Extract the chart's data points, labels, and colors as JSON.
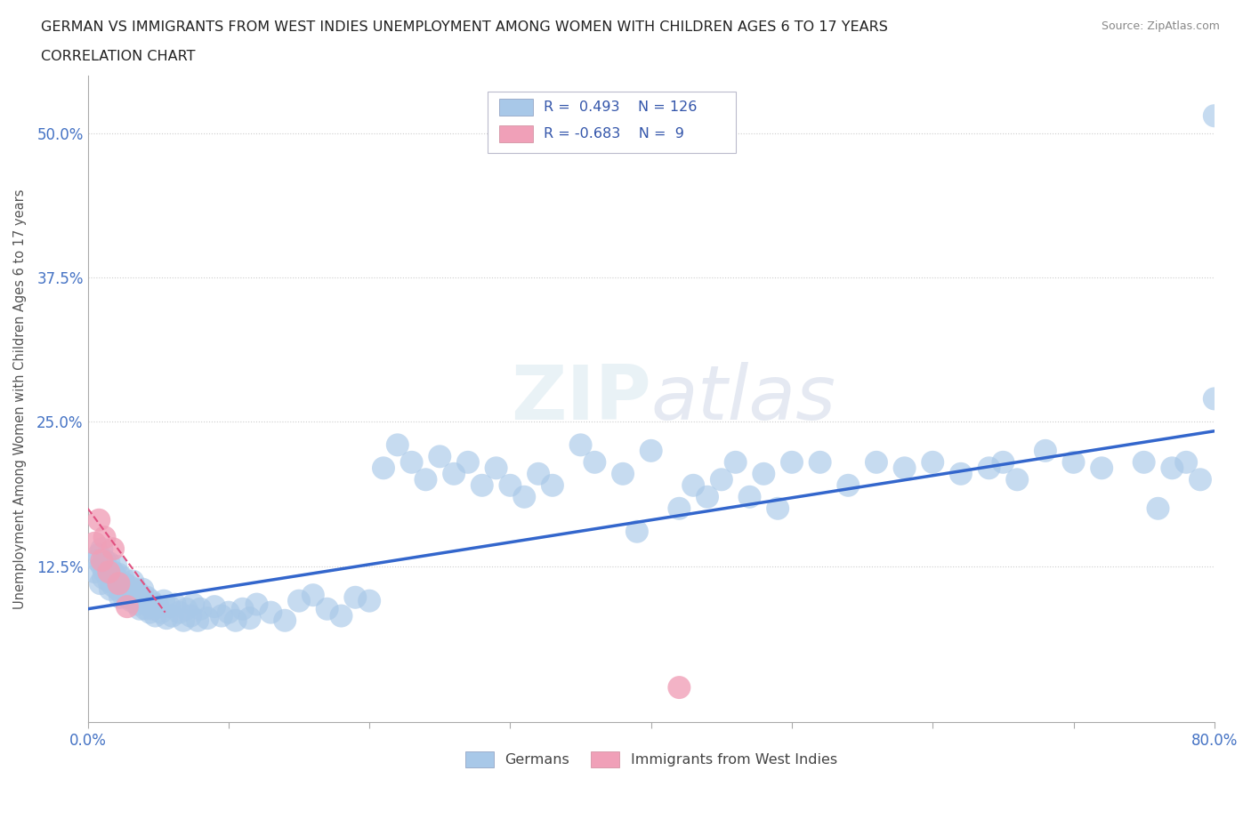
{
  "title_line1": "GERMAN VS IMMIGRANTS FROM WEST INDIES UNEMPLOYMENT AMONG WOMEN WITH CHILDREN AGES 6 TO 17 YEARS",
  "title_line2": "CORRELATION CHART",
  "source": "Source: ZipAtlas.com",
  "ylabel": "Unemployment Among Women with Children Ages 6 to 17 years",
  "xlim": [
    0.0,
    0.8
  ],
  "ylim": [
    -0.01,
    0.55
  ],
  "ytick_positions": [
    0.0,
    0.125,
    0.25,
    0.375,
    0.5
  ],
  "ytick_labels": [
    "",
    "12.5%",
    "25.0%",
    "37.5%",
    "50.0%"
  ],
  "grid_color": "#cccccc",
  "background_color": "#ffffff",
  "german_color": "#a8c8e8",
  "westindies_color": "#f0a0b8",
  "german_R": 0.493,
  "german_N": 126,
  "westindies_R": -0.683,
  "westindies_N": 9,
  "german_trend_x": [
    0.0,
    0.8
  ],
  "german_trend_y": [
    0.088,
    0.242
  ],
  "westindies_trend_x": [
    0.0,
    0.055
  ],
  "westindies_trend_y": [
    0.175,
    0.085
  ],
  "german_x": [
    0.005,
    0.007,
    0.008,
    0.009,
    0.01,
    0.01,
    0.011,
    0.012,
    0.012,
    0.013,
    0.014,
    0.015,
    0.015,
    0.016,
    0.017,
    0.018,
    0.018,
    0.019,
    0.02,
    0.02,
    0.021,
    0.022,
    0.022,
    0.023,
    0.024,
    0.025,
    0.025,
    0.026,
    0.027,
    0.028,
    0.029,
    0.03,
    0.031,
    0.032,
    0.033,
    0.034,
    0.035,
    0.036,
    0.037,
    0.038,
    0.039,
    0.04,
    0.041,
    0.042,
    0.043,
    0.044,
    0.045,
    0.046,
    0.047,
    0.048,
    0.05,
    0.052,
    0.054,
    0.056,
    0.058,
    0.06,
    0.062,
    0.065,
    0.068,
    0.07,
    0.073,
    0.075,
    0.078,
    0.08,
    0.085,
    0.09,
    0.095,
    0.1,
    0.105,
    0.11,
    0.115,
    0.12,
    0.13,
    0.14,
    0.15,
    0.16,
    0.17,
    0.18,
    0.19,
    0.2,
    0.21,
    0.22,
    0.23,
    0.24,
    0.25,
    0.26,
    0.27,
    0.28,
    0.29,
    0.3,
    0.31,
    0.32,
    0.33,
    0.35,
    0.36,
    0.38,
    0.39,
    0.4,
    0.42,
    0.43,
    0.44,
    0.45,
    0.46,
    0.47,
    0.48,
    0.49,
    0.5,
    0.52,
    0.54,
    0.56,
    0.58,
    0.6,
    0.62,
    0.64,
    0.65,
    0.66,
    0.68,
    0.7,
    0.72,
    0.75,
    0.76,
    0.77,
    0.78,
    0.79,
    0.8,
    0.8
  ],
  "german_y": [
    0.12,
    0.13,
    0.135,
    0.11,
    0.125,
    0.14,
    0.115,
    0.12,
    0.13,
    0.125,
    0.118,
    0.112,
    0.128,
    0.105,
    0.115,
    0.12,
    0.108,
    0.118,
    0.11,
    0.125,
    0.105,
    0.112,
    0.118,
    0.098,
    0.108,
    0.115,
    0.1,
    0.11,
    0.105,
    0.098,
    0.108,
    0.102,
    0.095,
    0.112,
    0.098,
    0.105,
    0.092,
    0.102,
    0.088,
    0.098,
    0.105,
    0.095,
    0.088,
    0.098,
    0.092,
    0.085,
    0.095,
    0.088,
    0.092,
    0.082,
    0.09,
    0.085,
    0.095,
    0.08,
    0.09,
    0.082,
    0.092,
    0.085,
    0.078,
    0.088,
    0.082,
    0.092,
    0.078,
    0.088,
    0.08,
    0.09,
    0.082,
    0.085,
    0.078,
    0.088,
    0.08,
    0.092,
    0.085,
    0.078,
    0.095,
    0.1,
    0.088,
    0.082,
    0.098,
    0.095,
    0.21,
    0.23,
    0.215,
    0.2,
    0.22,
    0.205,
    0.215,
    0.195,
    0.21,
    0.195,
    0.185,
    0.205,
    0.195,
    0.23,
    0.215,
    0.205,
    0.155,
    0.225,
    0.175,
    0.195,
    0.185,
    0.2,
    0.215,
    0.185,
    0.205,
    0.175,
    0.215,
    0.215,
    0.195,
    0.215,
    0.21,
    0.215,
    0.205,
    0.21,
    0.215,
    0.2,
    0.225,
    0.215,
    0.21,
    0.215,
    0.175,
    0.21,
    0.215,
    0.2,
    0.515,
    0.27
  ],
  "westindies_x": [
    0.005,
    0.008,
    0.01,
    0.012,
    0.015,
    0.018,
    0.022,
    0.028,
    0.42
  ],
  "westindies_y": [
    0.145,
    0.165,
    0.13,
    0.15,
    0.12,
    0.14,
    0.11,
    0.09,
    0.02
  ]
}
